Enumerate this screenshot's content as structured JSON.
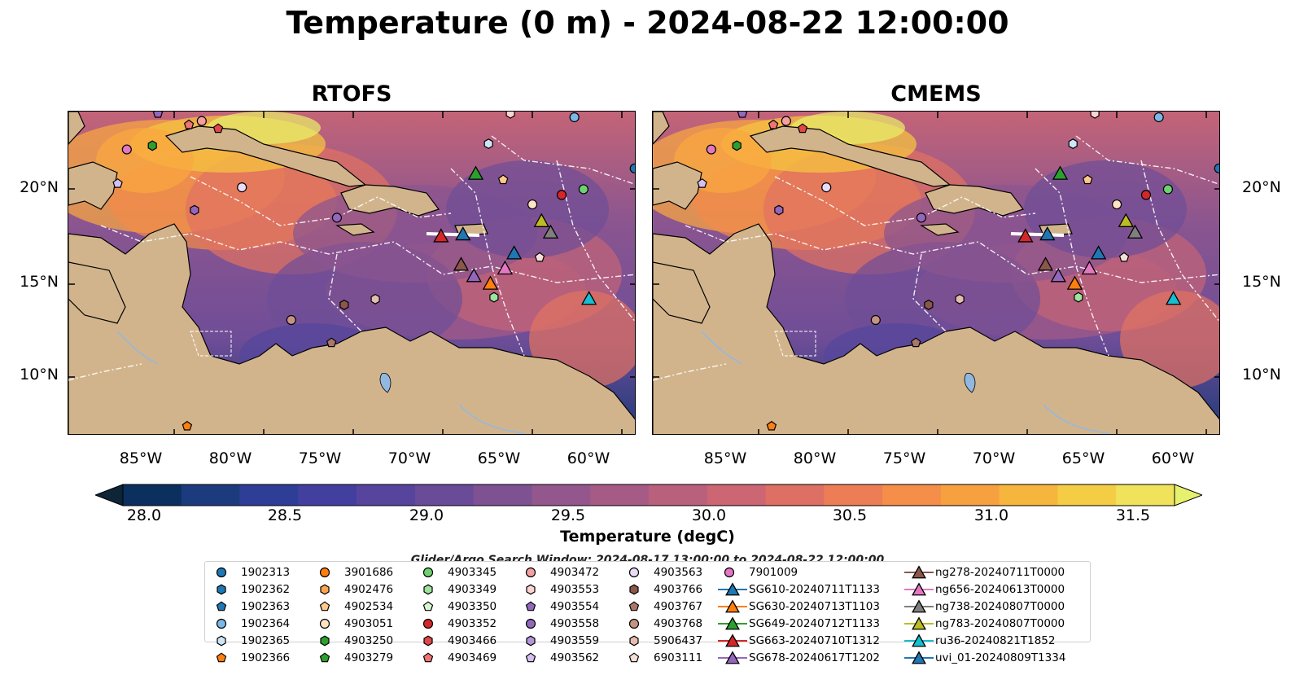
{
  "title": "Temperature (0 m) - 2024-08-22 12:00:00",
  "panels": [
    {
      "title": "RTOFS",
      "palette": [
        "#0a2a3a",
        "#1d3a7a",
        "#3d3f9b",
        "#54469d",
        "#6f4d97",
        "#8a5590",
        "#a25a86",
        "#c46477",
        "#e17261",
        "#f38b4a",
        "#f9a740",
        "#f6c63f",
        "#e9ef6a"
      ]
    },
    {
      "title": "CMEMS",
      "palette": [
        "#0a2a3a",
        "#1d3a7a",
        "#3d3f9b",
        "#54469d",
        "#6f4d97",
        "#8a5590",
        "#a25a86",
        "#c46477",
        "#e17261",
        "#f38b4a",
        "#f9a740",
        "#f6c63f",
        "#e9ef6a"
      ]
    }
  ],
  "lon_ticks": [
    "85°W",
    "80°W",
    "75°W",
    "70°W",
    "65°W",
    "60°W"
  ],
  "lat_ticks": [
    "20°N",
    "15°N",
    "10°N"
  ],
  "colorbar": {
    "label": "Temperature (degC)",
    "min": 28.0,
    "max": 31.5,
    "ticks": [
      "28.0",
      "28.5",
      "29.0",
      "29.5",
      "30.0",
      "30.5",
      "31.0",
      "31.5"
    ],
    "colors": [
      "#0d2536",
      "#0b2f5e",
      "#1c3b7e",
      "#2e3d96",
      "#433f9f",
      "#57449c",
      "#6a4b98",
      "#7e5193",
      "#93578d",
      "#a55b86",
      "#b9607d",
      "#cc6673",
      "#de6f65",
      "#ed7d55",
      "#f48e48",
      "#f7a03f",
      "#f6b63d",
      "#f4cd45",
      "#f0e25a",
      "#e6f26d"
    ]
  },
  "search_window": "Glider/Argo Search Window: 2024-08-17 13:00:00 to 2024-08-22 12:00:00",
  "legend": {
    "columns": [
      [
        {
          "label": "1902313",
          "shape": "circle",
          "color": "#1f77b4"
        },
        {
          "label": "1902362",
          "shape": "hexagon",
          "color": "#1f77b4"
        },
        {
          "label": "1902363",
          "shape": "pentagon",
          "color": "#1f77b4"
        },
        {
          "label": "1902364",
          "shape": "circle",
          "color": "#7ab8e8"
        },
        {
          "label": "1902365",
          "shape": "hexagon",
          "color": "#cde6f7"
        },
        {
          "label": "1902366",
          "shape": "pentagon",
          "color": "#ff7f0e"
        }
      ],
      [
        {
          "label": "3901686",
          "shape": "circle",
          "color": "#ff7f0e"
        },
        {
          "label": "4902476",
          "shape": "hexagon",
          "color": "#ffa54f"
        },
        {
          "label": "4902534",
          "shape": "pentagon",
          "color": "#ffc98a"
        },
        {
          "label": "4903051",
          "shape": "circle",
          "color": "#ffe3c2"
        },
        {
          "label": "4903250",
          "shape": "hexagon",
          "color": "#2ca02c"
        },
        {
          "label": "4903279",
          "shape": "pentagon",
          "color": "#2ca02c"
        }
      ],
      [
        {
          "label": "4903345",
          "shape": "circle",
          "color": "#6fd16f"
        },
        {
          "label": "4903349",
          "shape": "hexagon",
          "color": "#9ee39e"
        },
        {
          "label": "4903350",
          "shape": "pentagon",
          "color": "#d8f5d0"
        },
        {
          "label": "4903352",
          "shape": "circle",
          "color": "#d62728"
        },
        {
          "label": "4903466",
          "shape": "hexagon",
          "color": "#e04848"
        },
        {
          "label": "4903469",
          "shape": "pentagon",
          "color": "#ef7575"
        }
      ],
      [
        {
          "label": "4903472",
          "shape": "circle",
          "color": "#f5a0a0"
        },
        {
          "label": "4903553",
          "shape": "hexagon",
          "color": "#fcd2d2"
        },
        {
          "label": "4903554",
          "shape": "pentagon",
          "color": "#9467bd"
        },
        {
          "label": "4903558",
          "shape": "circle",
          "color": "#9467bd"
        },
        {
          "label": "4903559",
          "shape": "hexagon",
          "color": "#b595d9"
        },
        {
          "label": "4903562",
          "shape": "pentagon",
          "color": "#d5bff0"
        }
      ],
      [
        {
          "label": "4903563",
          "shape": "circle",
          "color": "#e9dcf7"
        },
        {
          "label": "4903766",
          "shape": "hexagon",
          "color": "#8c564b"
        },
        {
          "label": "4903767",
          "shape": "pentagon",
          "color": "#a9776a"
        },
        {
          "label": "4903768",
          "shape": "circle",
          "color": "#c49384"
        },
        {
          "label": "5906437",
          "shape": "hexagon",
          "color": "#e6bcb0"
        },
        {
          "label": "6903111",
          "shape": "pentagon",
          "color": "#f7dfd8"
        }
      ],
      [
        {
          "label": "7901009",
          "shape": "circle",
          "color": "#e377c2"
        },
        {
          "label": "SG610-20240711T1133",
          "shape": "triangle-line",
          "color": "#1f77b4"
        },
        {
          "label": "SG630-20240713T1103",
          "shape": "triangle-line",
          "color": "#ff7f0e"
        },
        {
          "label": "SG649-20240712T1133",
          "shape": "triangle-line",
          "color": "#2ca02c"
        },
        {
          "label": "SG663-20240710T1312",
          "shape": "triangle-line",
          "color": "#d62728"
        },
        {
          "label": "SG678-20240617T1202",
          "shape": "triangle-line",
          "color": "#9467bd"
        }
      ],
      [
        {
          "label": "ng278-20240711T0000",
          "shape": "triangle-line",
          "color": "#8c564b"
        },
        {
          "label": "ng656-20240613T0000",
          "shape": "triangle-line",
          "color": "#e377c2"
        },
        {
          "label": "ng738-20240807T0000",
          "shape": "triangle-line",
          "color": "#7f7f7f"
        },
        {
          "label": "ng783-20240807T0000",
          "shape": "triangle-line",
          "color": "#bcbd22"
        },
        {
          "label": "ru36-20240821T1852",
          "shape": "triangle-line",
          "color": "#17becf"
        },
        {
          "label": "uvi_01-20240809T1334",
          "shape": "triangle-line",
          "color": "#1f77b4"
        }
      ]
    ]
  },
  "map_markers": [
    {
      "shape": "circle",
      "color": "#e377c2",
      "lon": -86.0,
      "lat": 22.4
    },
    {
      "shape": "hexagon",
      "color": "#2ca02c",
      "lon": -84.6,
      "lat": 22.6
    },
    {
      "shape": "pentagon",
      "color": "#9467bd",
      "lon": -84.3,
      "lat": 24.3
    },
    {
      "shape": "pentagon",
      "color": "#ef7575",
      "lon": -82.6,
      "lat": 23.7
    },
    {
      "shape": "circle",
      "color": "#f5a0a0",
      "lon": -81.9,
      "lat": 23.9
    },
    {
      "shape": "pentagon",
      "color": "#e04848",
      "lon": -81.0,
      "lat": 23.5
    },
    {
      "shape": "pentagon",
      "color": "#d5bff0",
      "lon": -86.5,
      "lat": 20.6
    },
    {
      "shape": "circle",
      "color": "#e9dcf7",
      "lon": -79.7,
      "lat": 20.4
    },
    {
      "shape": "hexagon",
      "color": "#9467bd",
      "lon": -82.3,
      "lat": 19.2
    },
    {
      "shape": "circle",
      "color": "#9467bd",
      "lon": -74.5,
      "lat": 18.8
    },
    {
      "shape": "hexagon",
      "color": "#cde6f7",
      "lon": -66.2,
      "lat": 22.7
    },
    {
      "shape": "pentagon",
      "color": "#ffc98a",
      "lon": -65.4,
      "lat": 20.8
    },
    {
      "shape": "circle",
      "color": "#ffe3c2",
      "lon": -63.8,
      "lat": 19.5
    },
    {
      "shape": "circle",
      "color": "#d62728",
      "lon": -62.2,
      "lat": 20.0
    },
    {
      "shape": "circle",
      "color": "#6fd16f",
      "lon": -61.0,
      "lat": 20.3
    },
    {
      "shape": "circle",
      "color": "#7ab8e8",
      "lon": -61.5,
      "lat": 24.1
    },
    {
      "shape": "circle",
      "color": "#1f77b4",
      "lon": -58.2,
      "lat": 21.4
    },
    {
      "shape": "pentagon",
      "color": "#f7dfd8",
      "lon": -63.4,
      "lat": 16.7
    },
    {
      "shape": "hexagon",
      "color": "#9ee39e",
      "lon": -65.9,
      "lat": 14.6
    },
    {
      "shape": "hexagon",
      "color": "#fcd2d2",
      "lon": -65.0,
      "lat": 24.3
    },
    {
      "shape": "hexagon",
      "color": "#8c564b",
      "lon": -74.1,
      "lat": 14.2
    },
    {
      "shape": "hexagon",
      "color": "#e6bcb0",
      "lon": -72.4,
      "lat": 14.5
    },
    {
      "shape": "circle",
      "color": "#c49384",
      "lon": -77.0,
      "lat": 13.4
    },
    {
      "shape": "pentagon",
      "color": "#a9776a",
      "lon": -74.8,
      "lat": 12.2
    },
    {
      "shape": "pentagon",
      "color": "#ff7f0e",
      "lon": -82.7,
      "lat": 7.8
    },
    {
      "shape": "triangle",
      "color": "#2ca02c",
      "lon": -66.9,
      "lat": 21.1
    },
    {
      "shape": "triangle",
      "color": "#d62728",
      "lon": -68.8,
      "lat": 17.8
    },
    {
      "shape": "triangle",
      "color": "#1f77b4",
      "lon": -67.6,
      "lat": 17.9
    },
    {
      "shape": "triangle",
      "color": "#1f77b4",
      "lon": -64.8,
      "lat": 16.9
    },
    {
      "shape": "triangle",
      "color": "#8c564b",
      "lon": -67.7,
      "lat": 16.3
    },
    {
      "shape": "triangle",
      "color": "#9467bd",
      "lon": -67.0,
      "lat": 15.7
    },
    {
      "shape": "triangle",
      "color": "#ff7f0e",
      "lon": -66.1,
      "lat": 15.3
    },
    {
      "shape": "triangle",
      "color": "#e377c2",
      "lon": -65.3,
      "lat": 16.1
    },
    {
      "shape": "triangle",
      "color": "#bcbd22",
      "lon": -63.3,
      "lat": 18.6
    },
    {
      "shape": "triangle",
      "color": "#7f7f7f",
      "lon": -62.8,
      "lat": 18.0
    },
    {
      "shape": "triangle",
      "color": "#17becf",
      "lon": -60.7,
      "lat": 14.5
    }
  ]
}
